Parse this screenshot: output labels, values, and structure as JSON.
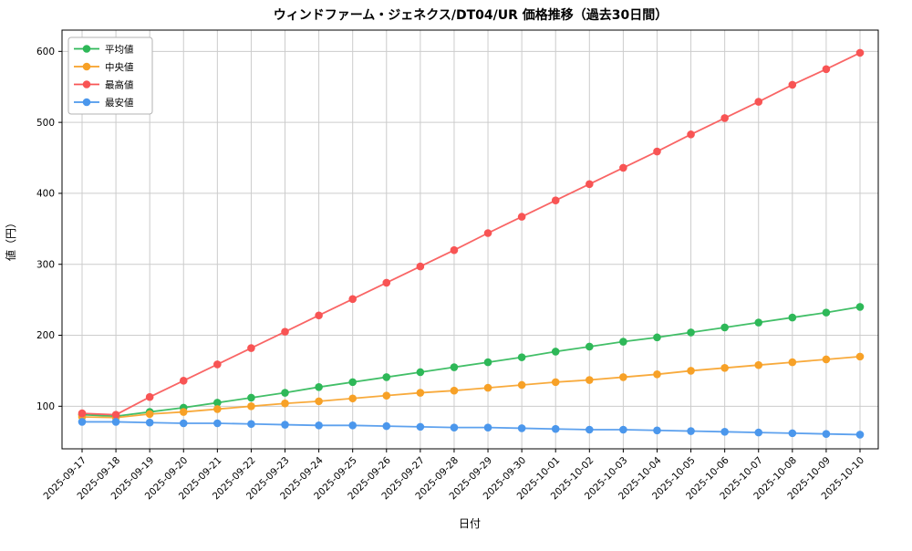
{
  "chart_data": {
    "type": "line",
    "title": "ウィンドファーム・ジェネクス/DT04/UR 価格推移（過去30日間）",
    "xlabel": "日付",
    "ylabel": "値（円）",
    "grid": true,
    "grid_color": "#cccccc",
    "legend_position": "upper left",
    "ylim": [
      40,
      630
    ],
    "yticks": [
      100,
      200,
      300,
      400,
      500,
      600
    ],
    "x": [
      "2025-09-17",
      "2025-09-18",
      "2025-09-19",
      "2025-09-20",
      "2025-09-21",
      "2025-09-22",
      "2025-09-23",
      "2025-09-24",
      "2025-09-25",
      "2025-09-26",
      "2025-09-27",
      "2025-09-28",
      "2025-09-29",
      "2025-09-30",
      "2025-10-01",
      "2025-10-02",
      "2025-10-03",
      "2025-10-04",
      "2025-10-05",
      "2025-10-06",
      "2025-10-07",
      "2025-10-08",
      "2025-10-09",
      "2025-10-10"
    ],
    "series": [
      {
        "id": "mean",
        "name": "平均値",
        "color": "#2eb858",
        "values": [
          88,
          86,
          92,
          98,
          105,
          112,
          119,
          127,
          134,
          141,
          148,
          155,
          162,
          169,
          177,
          184,
          191,
          197,
          204,
          211,
          218,
          225,
          232,
          240
        ]
      },
      {
        "id": "median",
        "name": "中央値",
        "color": "#f7a127",
        "values": [
          85,
          84,
          89,
          92,
          96,
          100,
          104,
          107,
          111,
          115,
          119,
          122,
          126,
          130,
          134,
          137,
          141,
          145,
          150,
          154,
          158,
          162,
          166,
          170
        ]
      },
      {
        "id": "max",
        "name": "最高値",
        "color": "#f85454",
        "values": [
          90,
          88,
          113,
          136,
          159,
          182,
          205,
          228,
          251,
          274,
          297,
          320,
          344,
          367,
          390,
          413,
          436,
          459,
          483,
          506,
          529,
          553,
          575,
          598
        ]
      },
      {
        "id": "min",
        "name": "最安値",
        "color": "#4b97ec",
        "values": [
          78,
          78,
          77,
          76,
          76,
          75,
          74,
          73,
          73,
          72,
          71,
          70,
          70,
          69,
          68,
          67,
          67,
          66,
          65,
          64,
          63,
          62,
          61,
          60
        ]
      }
    ]
  }
}
